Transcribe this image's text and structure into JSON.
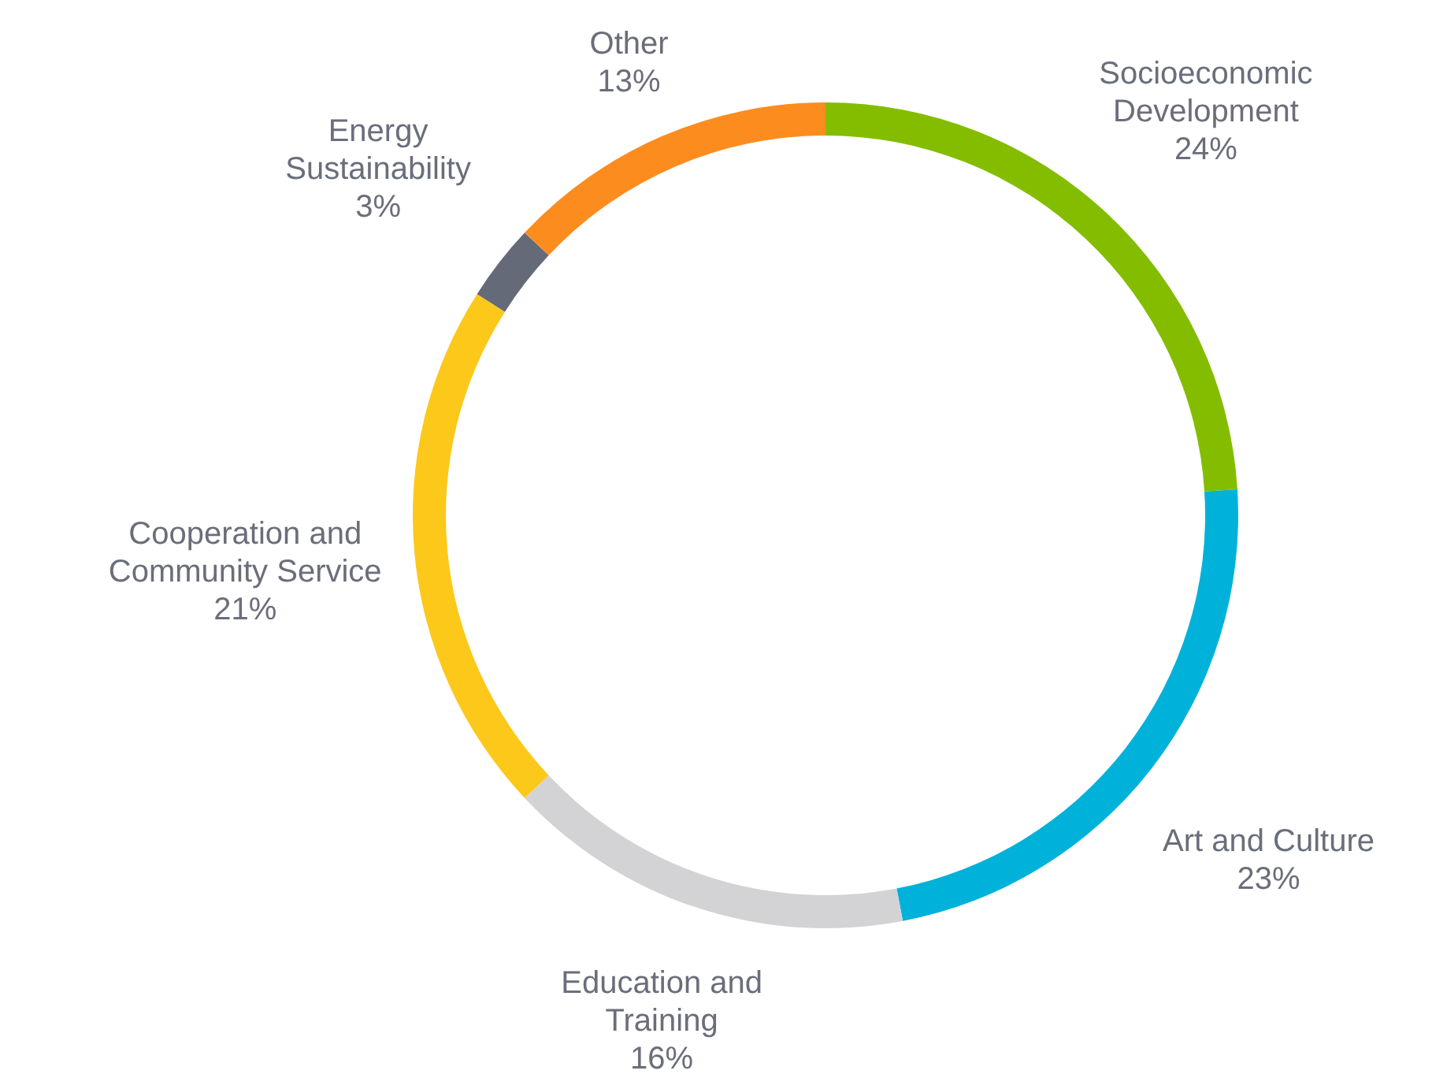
{
  "chart_data": {
    "type": "donut",
    "categories": [
      "Socioeconomic Development",
      "Art and Culture",
      "Education and Training",
      "Cooperation and Community Service",
      "Energy Sustainability",
      "Other"
    ],
    "values": [
      24,
      23,
      16,
      21,
      3,
      13
    ],
    "colors": [
      "#84bd00",
      "#00b2d9",
      "#d3d3d5",
      "#fcc81a",
      "#656a78",
      "#fd8c1f"
    ],
    "value_labels": [
      "24%",
      "23%",
      "16%",
      "21%",
      "3%",
      "13%"
    ]
  }
}
